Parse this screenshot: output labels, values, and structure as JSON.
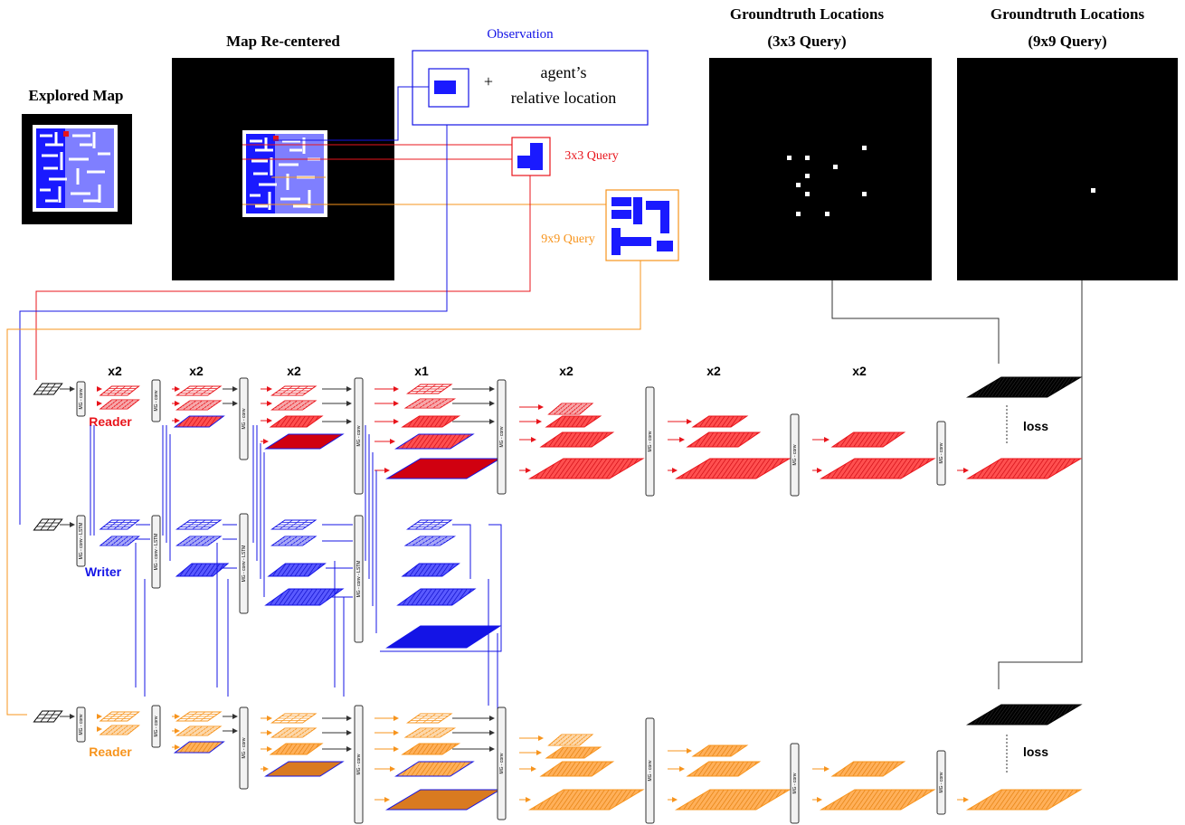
{
  "titles": {
    "explored_map": "Explored Map",
    "map_recentered": "Map Re-centered",
    "observation": "Observation",
    "gt_3x3_line1": "Groundtruth Locations",
    "gt_3x3_line2": "(3x3 Query)",
    "gt_9x9_line1": "Groundtruth Locations",
    "gt_9x9_line2": "(9x9 Query)"
  },
  "observation_box": {
    "plus": "+",
    "line1": "agent’s",
    "line2": "relative location"
  },
  "queries": {
    "q3": "3x3 Query",
    "q9": "9x9 Query"
  },
  "multipliers": [
    "x2",
    "x2",
    "x2",
    "x1",
    "x2",
    "x2",
    "x2"
  ],
  "rows": {
    "reader_top": "Reader",
    "writer": "Writer",
    "reader_bottom": "Reader"
  },
  "block_labels": {
    "mg_conv": "MG - conv",
    "mg_conv_lstm": "MG - conv - LSTM"
  },
  "loss": [
    "loss",
    "loss"
  ],
  "colors": {
    "reader_top": "#e8141b",
    "writer": "#1414e6",
    "reader_bottom": "#f7941d",
    "maze_blue": "#1a1aff",
    "maze_light": "#7f7fff",
    "black": "#000000"
  },
  "gt_points_3x3_count": 10,
  "gt_points_9x9_count": 1
}
